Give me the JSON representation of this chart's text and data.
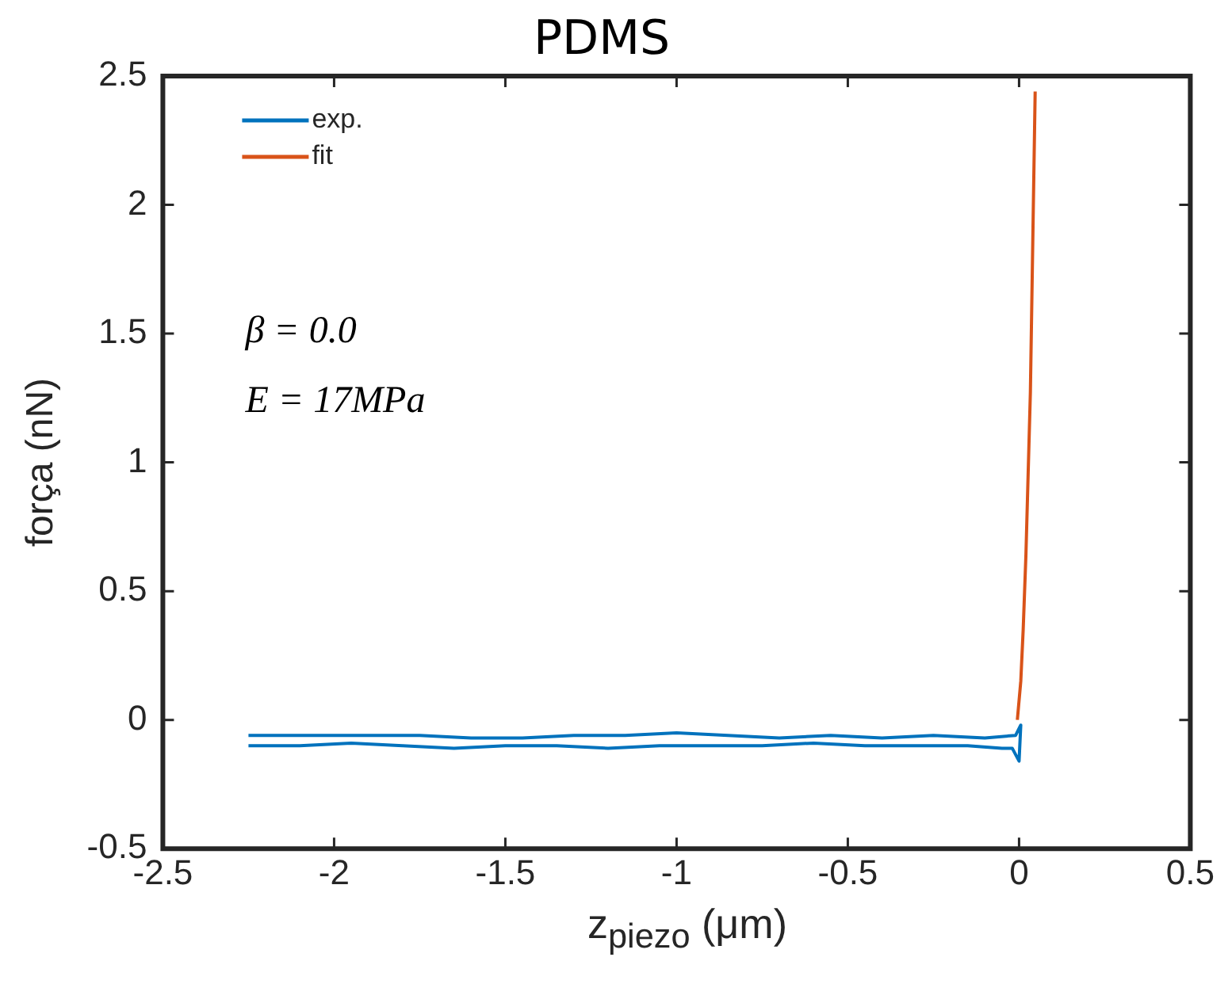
{
  "chart_data": {
    "type": "line",
    "title": "PDMS",
    "xlabel": "z$_{piezo}$ (μm)",
    "ylabel": "força (nN)",
    "xlim": [
      -2.5,
      0.5
    ],
    "xticks": [
      -2.5,
      -2,
      -1.5,
      -1,
      -0.5,
      0,
      0.5
    ],
    "ylim": [
      -0.5,
      2.5
    ],
    "yticks": [
      -0.5,
      0,
      0.5,
      1,
      1.5,
      2,
      2.5
    ],
    "grid": false,
    "legend": "top left",
    "marker": "none",
    "line_style": "solid",
    "annotations": [
      "β = 0.0",
      "E = 17MPa"
    ],
    "series": [
      {
        "name": "exp.",
        "color": "#0072bd",
        "x": [
          -2.25,
          -2.1,
          -1.95,
          -1.8,
          -1.65,
          -1.5,
          -1.35,
          -1.2,
          -1.05,
          -0.9,
          -0.75,
          -0.6,
          -0.45,
          -0.3,
          -0.15,
          -0.05,
          -0.02,
          0,
          0.005,
          -0.01,
          -0.1,
          -0.25,
          -0.4,
          -0.55,
          -0.7,
          -0.85,
          -1,
          -1.15,
          -1.3,
          -1.45,
          -1.6,
          -1.75,
          -1.9,
          -2.05,
          -2.25
        ],
        "values": [
          -0.1,
          -0.1,
          -0.09,
          -0.1,
          -0.11,
          -0.1,
          -0.1,
          -0.11,
          -0.1,
          -0.1,
          -0.1,
          -0.09,
          -0.1,
          -0.1,
          -0.1,
          -0.11,
          -0.11,
          -0.16,
          -0.02,
          -0.06,
          -0.07,
          -0.06,
          -0.07,
          -0.06,
          -0.07,
          -0.06,
          -0.05,
          -0.06,
          -0.06,
          -0.07,
          -0.07,
          -0.06,
          -0.06,
          -0.06,
          -0.06
        ]
      },
      {
        "name": "fit",
        "color": "#d95319",
        "x": [
          -0.005,
          0.005,
          0.012,
          0.02,
          0.033,
          0.047
        ],
        "values": [
          0,
          0.15,
          0.35,
          0.64,
          1.27,
          2.44
        ]
      }
    ]
  }
}
